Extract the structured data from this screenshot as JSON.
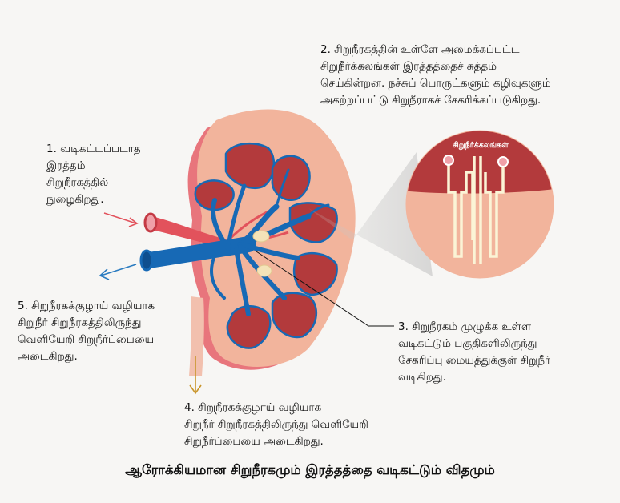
{
  "title": "ஆரோக்கியமான சிறுநீரகமும் இரத்தத்தை வடிகட்டும் விதமும்",
  "callouts": [
    {
      "lines": [
        "1. வடிகட்டப்படாத",
        "இரத்தம்",
        "சிறுநீரகத்தில்",
        "நுழைகிறது."
      ]
    },
    {
      "lines": [
        "2. சிறுநீரகத்தின் உள்ளே அமைக்கப்பட்ட",
        "சிறுநீர்க்கலங்கள்  இரத்தத்தைச் சுத்தம்",
        "செய்கின்றன. நச்சுப் பொருட்களும்  கழிவுகளும்",
        "அகற்றப்பட்டு  சிறுநீராகச் சேகரிக்கப்படுகிறது."
      ]
    },
    {
      "lines": [
        "3. சிறுநீரகம் முழுக்க உள்ள",
        "வடிகட்டும் பகுதிகளிலிருந்து",
        "சேகரிப்பு மையத்துக்குள் சிறுநீர்",
        "வடிகிறது."
      ]
    },
    {
      "lines": [
        "4. சிறுநீரகக்குழாய் வழியாக",
        " சிறுநீர் சிறுநீரகத்திலிருந்து வெளியேறி",
        "சிறுநீர்ப்பையை அடைகிறது."
      ]
    },
    {
      "lines": [
        "5. சிறுநீரகக்குழாய் வழியாக",
        " சிறுநீர் சிறுநீரகத்திலிருந்து",
        "வெளியேறி சிறுநீர்ப்பையை",
        "அடைகிறது."
      ]
    }
  ],
  "zoom_label": "சிறுநீர்க்கலங்கள்",
  "colors": {
    "kidney_outer": "#e8757c",
    "kidney_body": "#f2b49c",
    "pyramid": "#b33a3c",
    "vein": "#1769b5",
    "artery": "#e2525c",
    "arrow_red": "#e2525c",
    "arrow_blue": "#2a7bc0",
    "arrow_gold": "#c9952b"
  }
}
